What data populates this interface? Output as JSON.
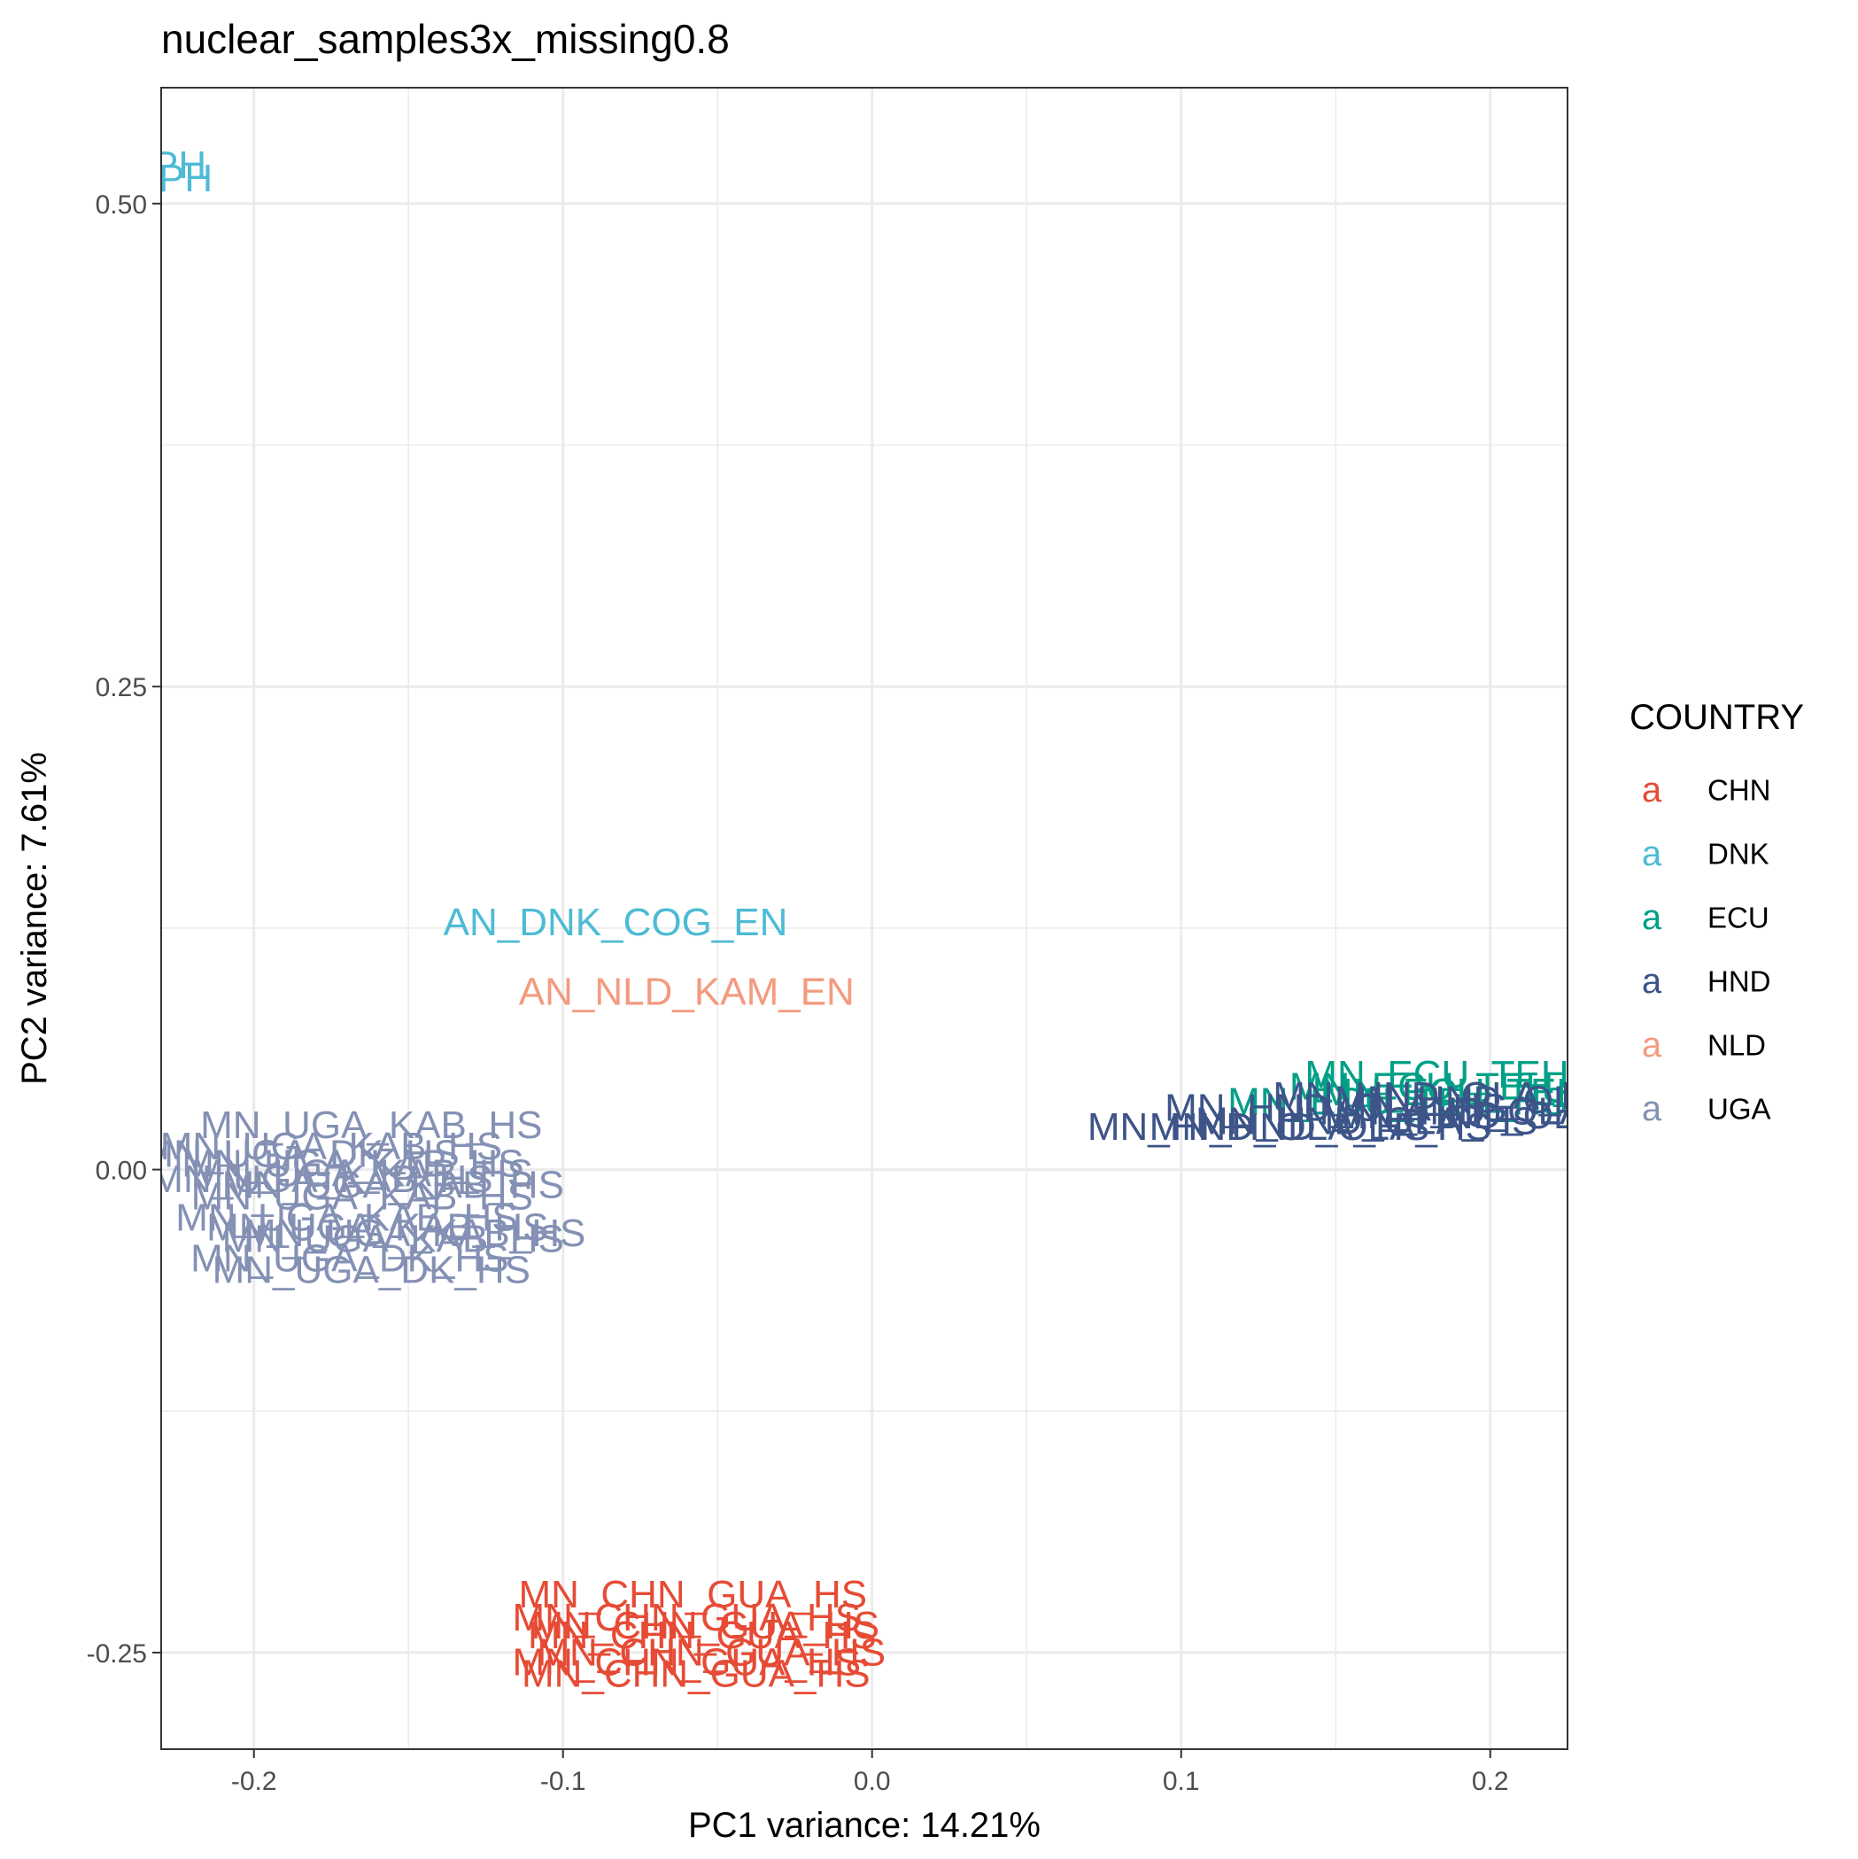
{
  "chart_data": {
    "type": "scatter",
    "title": "nuclear_samples3x_missing0.8",
    "xlabel": "PC1 variance: 14.21%",
    "ylabel": "PC2 variance: 7.61%",
    "xlim": [
      -0.23,
      0.225
    ],
    "ylim": [
      -0.3,
      0.56
    ],
    "x_ticks": [
      -0.2,
      -0.1,
      0.0,
      0.1,
      0.2
    ],
    "x_tick_labels": [
      "-0.2",
      "-0.1",
      "0.0",
      "0.1",
      "0.2"
    ],
    "y_ticks": [
      -0.25,
      0.0,
      0.25,
      0.5
    ],
    "y_tick_labels": [
      "-0.25",
      "0.00",
      "0.25",
      "0.50"
    ],
    "grid": true,
    "legend": {
      "title": "COUNTRY",
      "position": "right",
      "key_glyph": "a",
      "entries": [
        {
          "name": "CHN",
          "color": "#E64B35"
        },
        {
          "name": "DNK",
          "color": "#4DBBD5"
        },
        {
          "name": "ECU",
          "color": "#00A087"
        },
        {
          "name": "HND",
          "color": "#3C5488"
        },
        {
          "name": "NLD",
          "color": "#F39B7F"
        },
        {
          "name": "UGA",
          "color": "#8491B4"
        }
      ]
    },
    "points": [
      {
        "label": "AN_DNK_COZ_PH",
        "country": "DNK",
        "x": -0.27,
        "y": 0.52
      },
      {
        "label": "AN_DNK_COZ_PH",
        "country": "DNK",
        "x": -0.268,
        "y": 0.513
      },
      {
        "label": "AN_DNK_COG_EN",
        "country": "DNK",
        "x": -0.083,
        "y": 0.128
      },
      {
        "label": "AN_NLD_KAM_EN",
        "country": "NLD",
        "x": -0.06,
        "y": 0.092
      },
      {
        "label": "MN_UGA_KAB_HS",
        "country": "UGA",
        "x": -0.162,
        "y": 0.023
      },
      {
        "label": "MN_UGA_KAB_HS",
        "country": "UGA",
        "x": -0.175,
        "y": 0.012
      },
      {
        "label": "MN_UGA_DK_HS",
        "country": "UGA",
        "x": -0.185,
        "y": 0.008
      },
      {
        "label": "MN_UGA_KAB_HS",
        "country": "UGA",
        "x": -0.168,
        "y": 0.003
      },
      {
        "label": "MN_UGA_KAB_HS",
        "country": "UGA",
        "x": -0.165,
        "y": -0.002
      },
      {
        "label": "MN_UGA_KAB_HS",
        "country": "UGA",
        "x": -0.178,
        "y": -0.005
      },
      {
        "label": "MN_UGA_KAB_HS",
        "country": "UGA",
        "x": -0.155,
        "y": -0.008
      },
      {
        "label": "MN_UGA_KAB_HS",
        "country": "UGA",
        "x": -0.165,
        "y": -0.014
      },
      {
        "label": "MN_UGA_KAB_HS",
        "country": "UGA",
        "x": -0.17,
        "y": -0.025
      },
      {
        "label": "MN_UGA_KAB_HS",
        "country": "UGA",
        "x": -0.16,
        "y": -0.03
      },
      {
        "label": "MN_UGA_KAB_HS",
        "country": "UGA",
        "x": -0.148,
        "y": -0.033
      },
      {
        "label": "MN_UGA_KAB_HS",
        "country": "UGA",
        "x": -0.155,
        "y": -0.036
      },
      {
        "label": "MN_UGA_DK_HS",
        "country": "UGA",
        "x": -0.169,
        "y": -0.046
      },
      {
        "label": "MN_UGA_DK_HS",
        "country": "UGA",
        "x": -0.162,
        "y": -0.052
      },
      {
        "label": "MN_CHN_GUA_HS",
        "country": "CHN",
        "x": -0.058,
        "y": -0.22
      },
      {
        "label": "MN_CHN_GUA_HS",
        "country": "CHN",
        "x": -0.06,
        "y": -0.232
      },
      {
        "label": "MN_CHN_GUA_HS",
        "country": "CHN",
        "x": -0.054,
        "y": -0.236
      },
      {
        "label": "MN_CHN_GUA_HS",
        "country": "CHN",
        "x": -0.055,
        "y": -0.241
      },
      {
        "label": "MN_CHN_GUA_HS",
        "country": "CHN",
        "x": -0.052,
        "y": -0.25
      },
      {
        "label": "MN_CHN_GUA_HS",
        "country": "CHN",
        "x": -0.06,
        "y": -0.255
      },
      {
        "label": "MN_CHN_GUA_HS",
        "country": "CHN",
        "x": -0.057,
        "y": -0.261
      },
      {
        "label": "MN_ECU_TEH_HS",
        "country": "ECU",
        "x": 0.195,
        "y": 0.049
      },
      {
        "label": "MN_ECU_TEH_HS",
        "country": "ECU",
        "x": 0.19,
        "y": 0.043
      },
      {
        "label": "MN_ECU_TEH_HS",
        "country": "ECU",
        "x": 0.17,
        "y": 0.035
      },
      {
        "label": "MN_ECU_TEH_HS",
        "country": "ECU",
        "x": 0.2,
        "y": 0.04
      },
      {
        "label": "MN_HND_OLA_HS",
        "country": "HND",
        "x": 0.205,
        "y": 0.036
      },
      {
        "label": "MN_HND_OLA_HS",
        "country": "HND",
        "x": 0.185,
        "y": 0.038
      },
      {
        "label": "MN_HND_OLA_HS",
        "country": "HND",
        "x": 0.15,
        "y": 0.032
      },
      {
        "label": "MN_HND_OLA_HS",
        "country": "HND",
        "x": 0.2,
        "y": 0.03
      },
      {
        "label": "MN_HND_OLA_HS",
        "country": "HND",
        "x": 0.16,
        "y": 0.025
      },
      {
        "label": "MN_HND_OLA_HS",
        "country": "HND",
        "x": 0.145,
        "y": 0.022
      },
      {
        "label": "MN_HND_OLA_HS",
        "country": "HND",
        "x": 0.125,
        "y": 0.022
      },
      {
        "label": "MN_HND_OLA_HS",
        "country": "HND",
        "x": 0.205,
        "y": 0.028
      }
    ]
  }
}
